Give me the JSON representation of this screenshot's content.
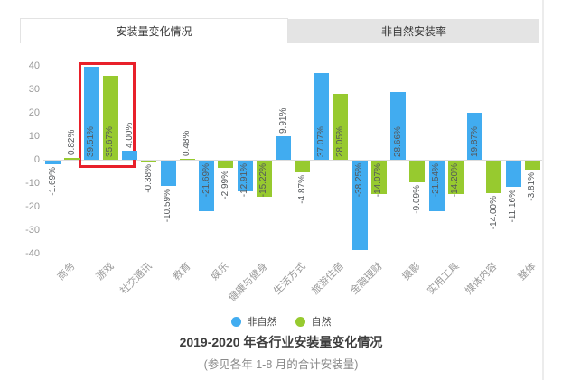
{
  "tabs": [
    {
      "label": "安装量变化情况",
      "active": true
    },
    {
      "label": "非自然安装率",
      "active": false
    }
  ],
  "legend": [
    {
      "label": "非自然",
      "color": "#41acf0"
    },
    {
      "label": "自然",
      "color": "#97ca2f"
    }
  ],
  "chart_data": {
    "type": "bar",
    "title": "2019-2020 年各行业安装量变化情况",
    "subtitle": "(参见各年 1-8 月的合计安装量)",
    "categories": [
      "商务",
      "游戏",
      "社交通讯",
      "教育",
      "娱乐",
      "健康与健身",
      "生活方式",
      "旅游住宿",
      "金融理财",
      "摄影",
      "实用工具",
      "媒体内容",
      "整体"
    ],
    "series": [
      {
        "name": "非自然",
        "color": "#41acf0",
        "values": [
          -1.69,
          39.51,
          4.0,
          -10.59,
          -21.69,
          -12.91,
          9.91,
          37.07,
          -38.25,
          28.66,
          -21.54,
          19.87,
          -11.16
        ],
        "labels": [
          "-1.69%",
          "39.51%",
          "4.00%",
          "-10.59%",
          "-21.69%",
          "-12.91%",
          "9.91%",
          "37.07%",
          "-38.25%",
          "28.66%",
          "-21.54%",
          "19.87%",
          "-11.16%"
        ],
        "label_inside": [
          false,
          true,
          false,
          false,
          true,
          true,
          false,
          true,
          true,
          true,
          true,
          true,
          false
        ]
      },
      {
        "name": "自然",
        "color": "#97ca2f",
        "values": [
          0.82,
          35.67,
          -0.38,
          0.48,
          -2.99,
          -15.22,
          -4.87,
          28.05,
          -14.07,
          -9.09,
          -14.2,
          -14.0,
          -3.81
        ],
        "labels": [
          "0.82%",
          "35.67%",
          "-0.38%",
          "0.48%",
          "-2.99%",
          "-15.22%",
          "-4.87%",
          "28.05%",
          "-14.07%",
          "-9.09%",
          "-14.20%",
          "-14.00%",
          "-3.81%"
        ],
        "label_inside": [
          false,
          true,
          false,
          false,
          false,
          true,
          false,
          true,
          true,
          false,
          true,
          false,
          false
        ]
      }
    ],
    "y_ticks": [
      40,
      30,
      20,
      10,
      0,
      -10,
      -20,
      -30,
      -40
    ],
    "ylim": [
      -44,
      44
    ],
    "grid": false,
    "legend_position": "bottom",
    "highlighted_category": "游戏",
    "highlight_color": "#e8202a"
  }
}
